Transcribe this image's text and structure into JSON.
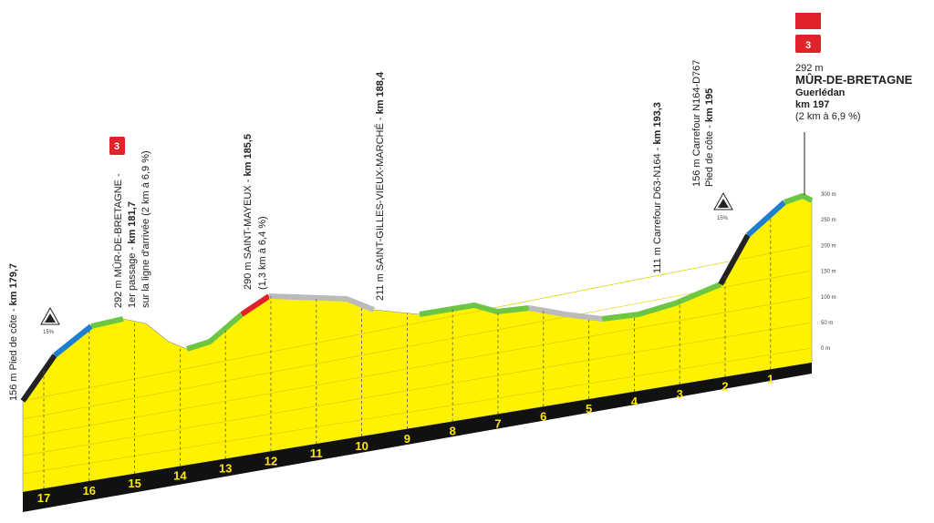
{
  "profile": {
    "axis": [
      "300 m",
      "250 m",
      "200 m",
      "150 m",
      "100 m",
      "50 m",
      "0 m"
    ],
    "km_markers": [
      "17",
      "16",
      "15",
      "14",
      "13",
      "12",
      "11",
      "10",
      "9",
      "8",
      "7",
      "6",
      "5",
      "4",
      "3",
      "2",
      "1"
    ],
    "annotations": [
      {
        "lines": [
          {
            "text": "156 m Pied de côte - ",
            "bold": "km 179,7"
          }
        ]
      },
      {
        "lines": [
          {
            "text": "292 m MÛR-DE-BRETAGNE - "
          },
          {
            "text": "1er passage - ",
            "bold": "km 181,7"
          },
          {
            "text": "sur la ligne d'arrivée (2 km à 6,9 %)"
          }
        ]
      },
      {
        "lines": [
          {
            "text": "290 m SAINT-MAYEUX - ",
            "bold": "km 185,5"
          },
          {
            "text": "(1,3 km à 6,4 %)"
          }
        ]
      },
      {
        "lines": [
          {
            "text": "211 m SAINT-GILLES-VIEUX-MARCHÉ - ",
            "bold": "km 188,4"
          }
        ]
      },
      {
        "lines": [
          {
            "text": "111 m Carrefour D63-N164 - ",
            "bold": "km 193,3"
          }
        ]
      },
      {
        "lines": [
          {
            "text": "156 m Carrefour N164-D767"
          },
          {
            "text": "Pied de côte - ",
            "bold": "km 195"
          }
        ]
      }
    ],
    "climb_badges": [
      "3",
      "3"
    ],
    "gradients": [
      "15%",
      "15%"
    ],
    "finish": {
      "altitude": "292 m",
      "name": "MÛR-DE-BRETAGNE",
      "town": "Guerlédan",
      "km": "km 197",
      "climb": "(2 km à 6,9 %)"
    }
  }
}
